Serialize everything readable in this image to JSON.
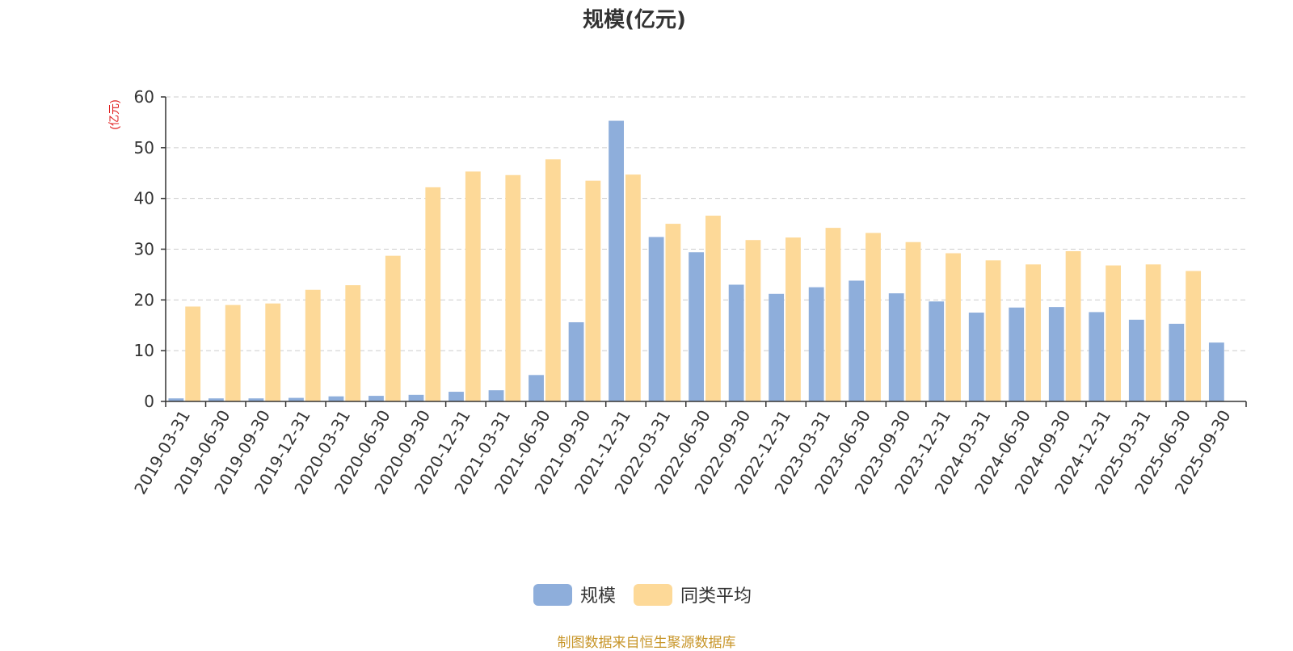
{
  "chart_data": {
    "type": "bar",
    "title": "规模(亿元)",
    "ylabel": "(亿元)",
    "xlabel": "",
    "ylim": [
      0,
      60
    ],
    "yticks": [
      0,
      10,
      20,
      30,
      40,
      50,
      60
    ],
    "grid": true,
    "legend_position": "bottom",
    "categories": [
      "2019-03-31",
      "2019-06-30",
      "2019-09-30",
      "2019-12-31",
      "2020-03-31",
      "2020-06-30",
      "2020-09-30",
      "2020-12-31",
      "2021-03-31",
      "2021-06-30",
      "2021-09-30",
      "2021-12-31",
      "2022-03-31",
      "2022-06-30",
      "2022-09-30",
      "2022-12-31",
      "2023-03-31",
      "2023-06-30",
      "2023-09-30",
      "2023-12-31",
      "2024-03-31",
      "2024-06-30",
      "2024-09-30",
      "2024-12-31",
      "2025-03-31",
      "2025-06-30",
      "2025-09-30"
    ],
    "series": [
      {
        "name": "规模",
        "color": "#8eaedb",
        "values": [
          0.6,
          0.6,
          0.6,
          0.7,
          1.0,
          1.1,
          1.3,
          1.9,
          2.2,
          5.2,
          15.6,
          55.3,
          32.4,
          29.4,
          23.0,
          21.2,
          22.5,
          23.8,
          21.3,
          19.7,
          17.5,
          18.5,
          18.6,
          17.6,
          16.1,
          15.3,
          11.6
        ]
      },
      {
        "name": "同类平均",
        "color": "#fdd998",
        "values": [
          18.7,
          19.0,
          19.3,
          22.0,
          22.9,
          28.7,
          42.2,
          45.3,
          44.6,
          47.7,
          43.5,
          44.7,
          35.0,
          36.6,
          31.8,
          32.3,
          34.2,
          33.2,
          31.4,
          29.2,
          27.8,
          27.0,
          29.6,
          26.8,
          27.0,
          25.7,
          null
        ]
      }
    ]
  },
  "footer": {
    "source": "制图数据来自恒生聚源数据库"
  }
}
